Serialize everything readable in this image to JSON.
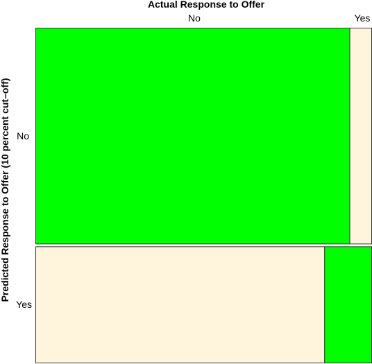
{
  "chart_data": {
    "type": "mosaic",
    "title": "",
    "xlabel": "Actual Response to Offer",
    "ylabel": "Predicted Response to Offer (10 percent cut–off)",
    "x_categories": [
      "No",
      "Yes"
    ],
    "y_categories": [
      "No",
      "Yes"
    ],
    "row_proportions": [
      0.65,
      0.35
    ],
    "cells": [
      {
        "predicted": "No",
        "actual": "No",
        "share_within_row": 0.935,
        "highlight": true
      },
      {
        "predicted": "No",
        "actual": "Yes",
        "share_within_row": 0.065,
        "highlight": false
      },
      {
        "predicted": "Yes",
        "actual": "No",
        "share_within_row": 0.86,
        "highlight": false
      },
      {
        "predicted": "Yes",
        "actual": "Yes",
        "share_within_row": 0.14,
        "highlight": true
      }
    ],
    "colors": {
      "correct": "#00ff00",
      "incorrect": "#fff5dc",
      "border": "#333333"
    }
  }
}
